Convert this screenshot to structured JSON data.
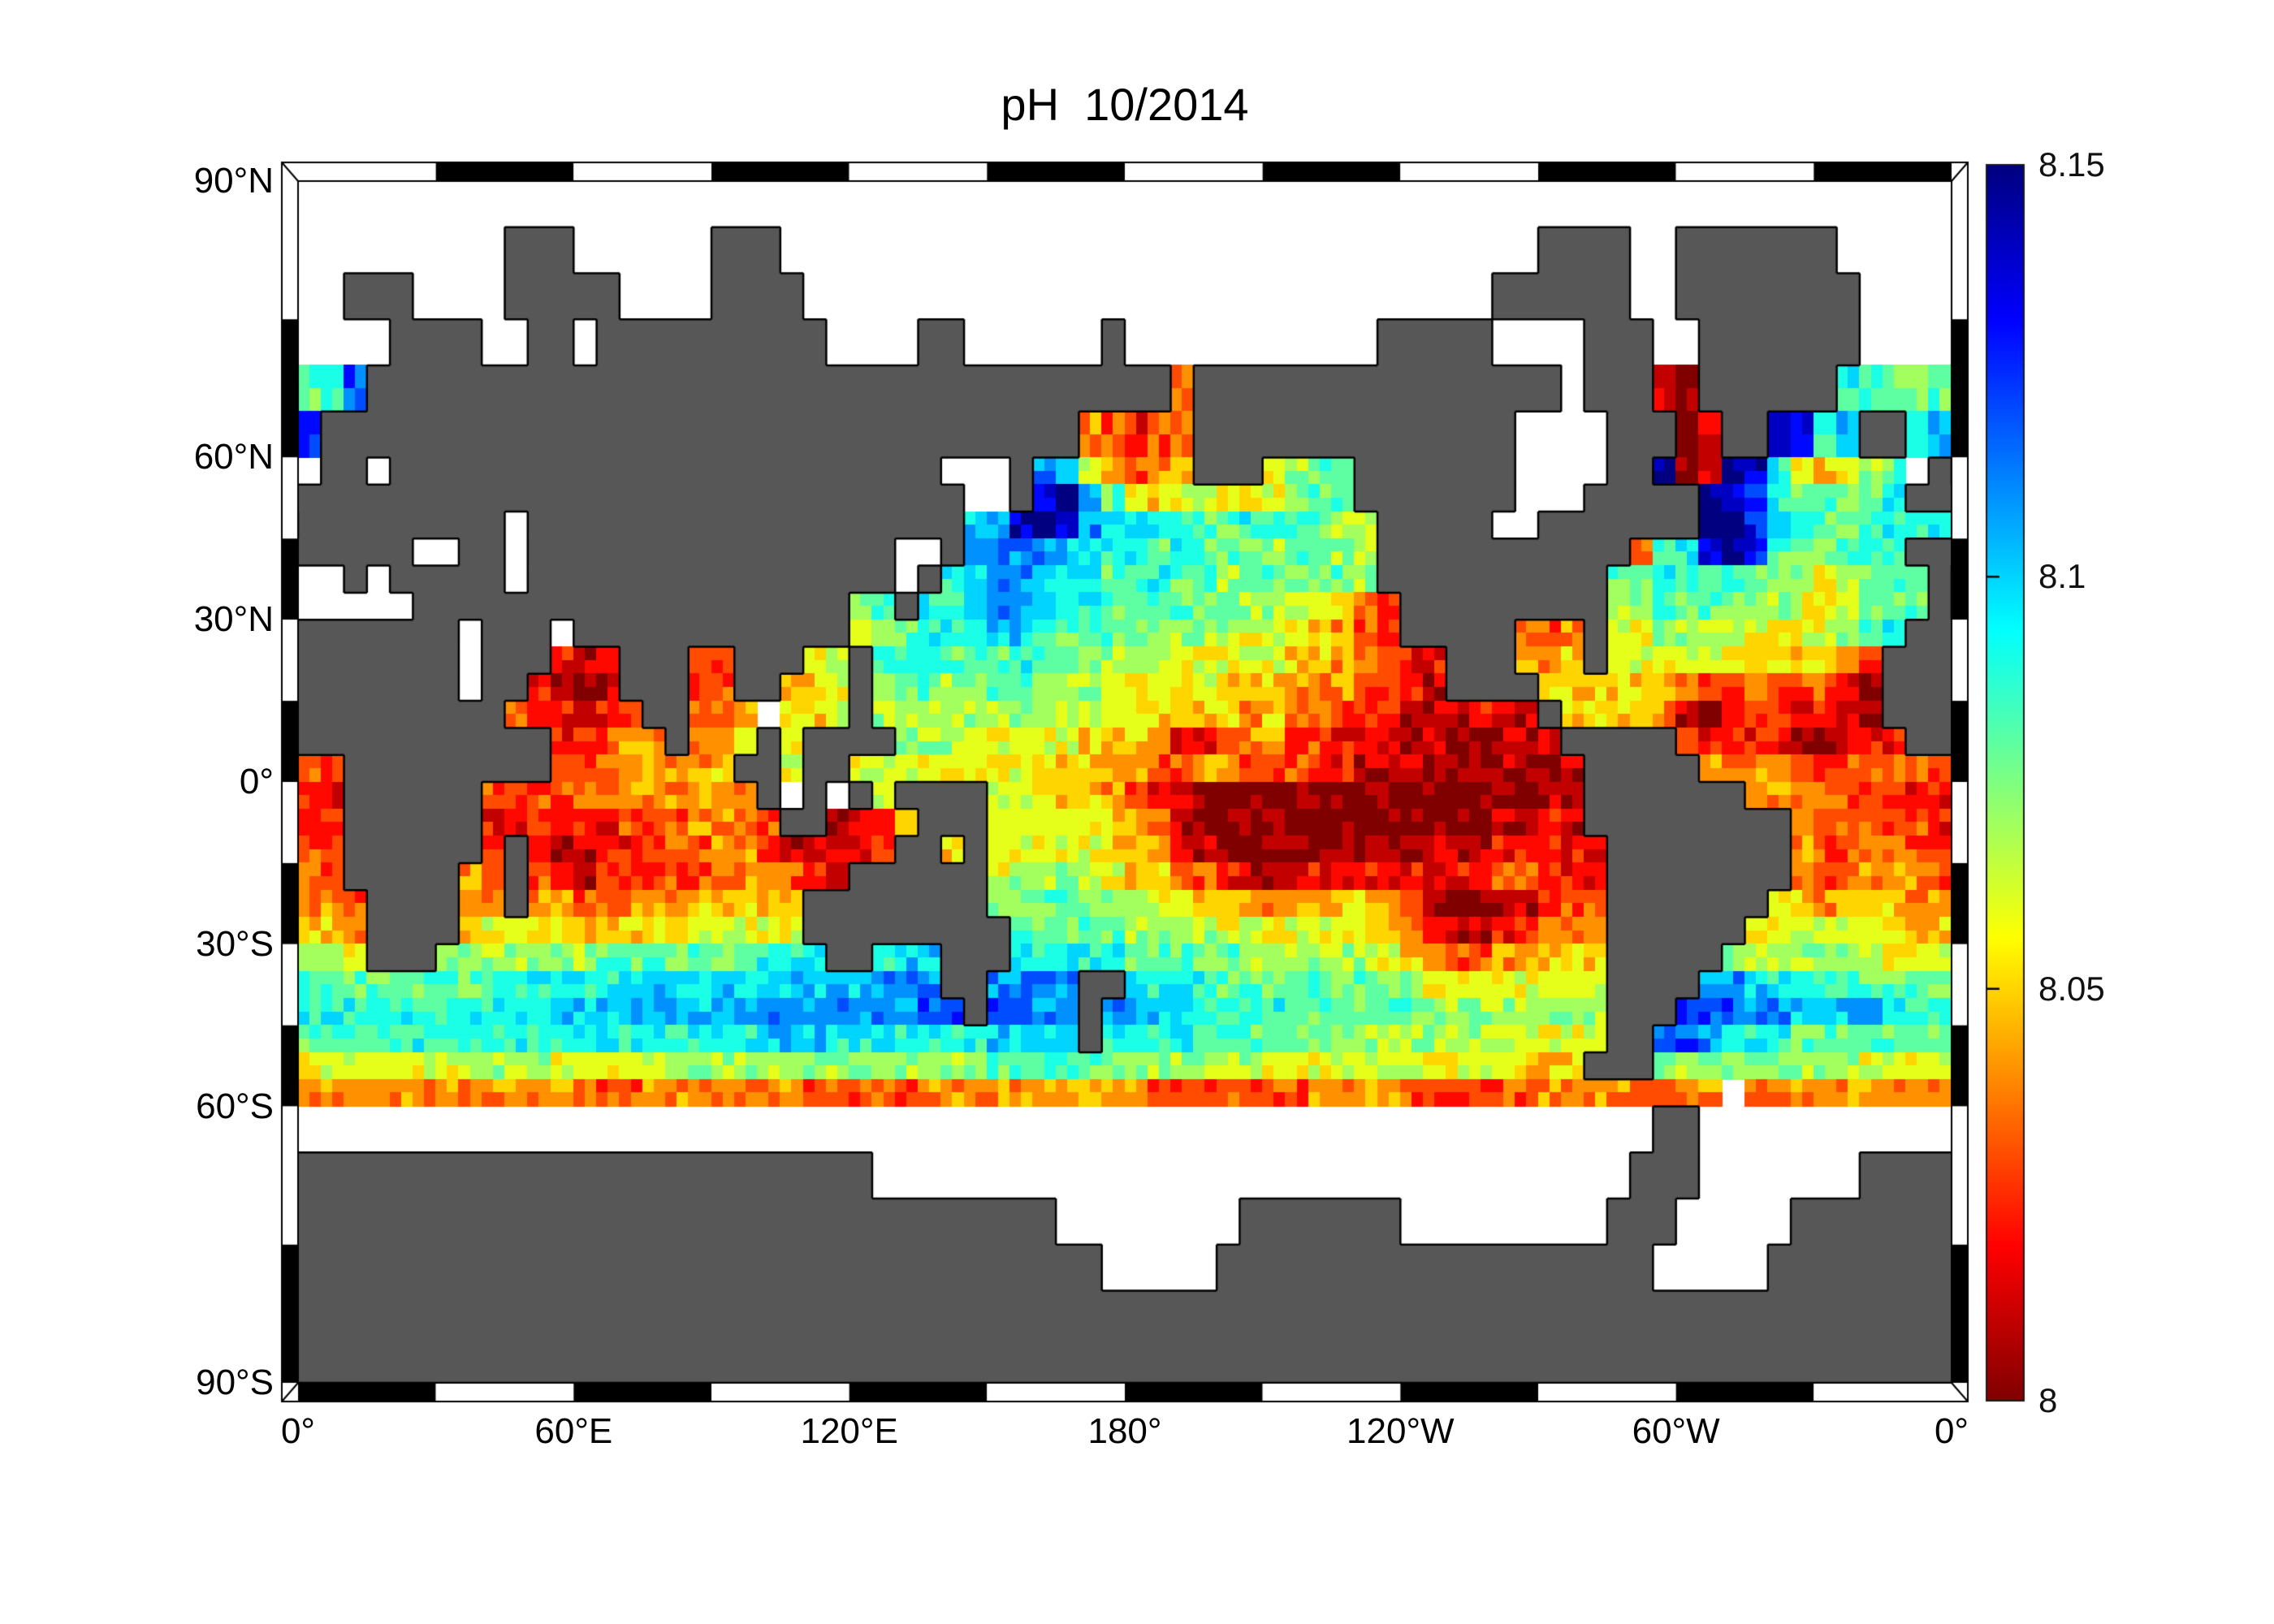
{
  "title": "pH  10/2014",
  "colors": {
    "background": "#ffffff",
    "land": "#575757",
    "coastline": "#000000",
    "frame": "#000000",
    "text": "#000000",
    "colorbar_top": "#000080",
    "colorbar_bottom": "#800000"
  },
  "axis": {
    "yticks": [
      {
        "lat": 90,
        "label": "90°N"
      },
      {
        "lat": 60,
        "label": "60°N"
      },
      {
        "lat": 30,
        "label": "30°N"
      },
      {
        "lat": 0,
        "label": "0°"
      },
      {
        "lat": -30,
        "label": "30°S"
      },
      {
        "lat": -60,
        "label": "60°S"
      },
      {
        "lat": -90,
        "label": "90°S"
      }
    ],
    "xticks": [
      {
        "lon": 0,
        "label": "0°"
      },
      {
        "lon": 60,
        "label": "60°E"
      },
      {
        "lon": 120,
        "label": "120°E"
      },
      {
        "lon": 180,
        "label": "180°"
      },
      {
        "lon": 240,
        "label": "120°W"
      },
      {
        "lon": 300,
        "label": "60°W"
      },
      {
        "lon": 360,
        "label": "0°"
      }
    ]
  },
  "colorbar": {
    "min": 8.0,
    "max": 8.15,
    "ticks": [
      {
        "value": 8.15,
        "label": "8.15"
      },
      {
        "value": 8.1,
        "label": "8.1"
      },
      {
        "value": 8.05,
        "label": "8.05"
      },
      {
        "value": 8.0,
        "label": "8"
      }
    ]
  },
  "chart_data": {
    "type": "heatmap",
    "title": "pH  10/2014",
    "variable": "sea surface pH",
    "colormap": "jet reversed (8.00 = dark red, 8.15 = dark blue)",
    "value_range": [
      8.0,
      8.15
    ],
    "lon_range": [
      0,
      360
    ],
    "lat_range": [
      -90,
      90
    ],
    "cell_deg": 5,
    "projection": "miller-like (poleward 30-degree bands stretched ~1.7x)",
    "encoding": "run-length tokens char:count; char '.'=no data (white), 'L'=land, hex 0..F => pH = 8.00 + 0.01*value",
    "grid_rows": [
      ".:72",
      ".:9 L:3 .:6 L:3 .:33 L:4 .:2 L:7 .:5",
      ".:2 L:3 .:4 L:5 .:4 L:4 .:30 L:6 .:2 L:8 .:4",
      ".:4 L:4 .:2 L:2 .:1 L:10 .:4 L:2 .:6 L:1 .:11 L:5 .:4 L:3 .:2 L:7 .:4",
      "8:1 9:1 C:1 L:35 3:1 L:16 .:1 L:3 1:1 0:1 L:6 9:2 8:1 7:1 8:1",
      "D:1 L:33 4:1 3:1 2:1 3:1 4:1 L:14 .:4 L:3 0:1 1:1 L:2 E:1 D:1 9:1 A:1 L:2 9:1 A:1",
      ".:1 L:2 .:1 L:24 .:3 L:1 B:1 A:1 6:1 4:1 3:1 4:1 5:1 L:3 6:1 7:1 8:2 L:7 .:4 L:2 F:1 0:1 1:1 F:1 E:1 9:1 5:2 6:1 7:1 8:1 .:1 L:1",
      "L:29 .:2 L:1 E:1 F:1 B:1 8:1 6:1 5:1 6:1 7:1 6:1 5:1 6:1 7:1 8:2 L:7 .:3 L:5 F:1 E:1 C:1 9:1 8:2 7:1 8:1 9:1 L:2",
      "L:9 .:1 L:19 A:1 B:1 E:1 F:1 E:1 B:1 A:2 9:2 8:2 9:2 8:2 7:1 6:1 L:5 .:2 L:7 F:2 D:1 A:1 9:1 8:2 9:4",
      "L:5 .:2 L:2 .:1 L:16 .:2 L:1 B:1 C:1 B:2 A:2 9:2 8:1 9:1 8:3 7:1 8:2 7:1 6:1 L:11 3:1 8:1 9:1 E:1 F:1 D:1 8:1 7:2 8:3 L:2",
      ".:2 L:1 .:1 L:5 .:1 L:16 .:1 L:1 9:1 A:1 B:2 A:1 9:2 8:2 9:1 8:2 7:1 8:2 7:2 8:1 7:1 L:10 8:2 9:1 8:2 9:1 8:1 7:2 6:1 7:1 8:3 L:1",
      ".:5 L:19 7:1 8:1 L:1 9:2 A:1 B:2 A:1 9:2 8:4 7:1 8:1 7:3 6:1 5:1 3:1 2:1 L:9 7:2 8:4 7:2 6:2 7:1 8:3 L:1",
      "L:7 .:1 L:3 .:1 L:12 6:1 8:2 9:3 A:2 9:1 8:4 7:4 6:3 5:1 4:1 3:1 2:1 L:5 4:1 3:1 4:1 L:1 6:2 7:4 6:4 7:1 8:1 9:1 L:2",
      "L:7 .:1 L:3 2:1 1:1 2:1 L:3 3:2 L:3 6:1 7:1 L:1 8:1 9:2 8:3 9:1 8:2 7:4 6:5 5:2 4:2 3:1 2:2 L:3 4:2 5:1 L:1 6:5 5:5 4:1 3:1 L:3",
      "L:7 .:1 L:2 2:1 1:1 0:1 1:1 L:3 2:1 3:1 L:2 5:2 6:1 L:1 7:1 8:2 7:2 8:2 7:3 6:3 5:1 6:1 5:3 4:3 3:2 2:1 1:1 L:4 5:6 4:1 3:2 4:1 3:3 2:1 1:1 L:3",
      "L:9 3:1 2:2 1:1 2:1 3:1 L:2 3:2 4:1 .:1 5:2 6:1 L:1 7:8 6:4 5:4 4:1 5:1 4:2 3:2 2:1 1:3 2:2 1:1 L:1 5:4 4:1 1:1 0:1 2:1 3:2 2:3 1:1 L:3",
      "L:11 2:1 3:2 4:2 L:1 4:2 5:1 L:1 6:1 L:4 7:3 6:5 5:3 4:1 2:2 3:1 4:2 3:2 2:2 1:3 0:2 1:2 2:1 L:5 3:1 2:4 1:1 0:1 1:1 2:2 L:2",
      "3:2 L:9 3:2 4:5 5:1 L:2 6:1 L:2 6:1 7:1 6:4 5:1 6:1 5:3 4:2 3:2 4:2 3:1 2:1 3:1 2:2 1:7 0:1 1:2 L:5 4:4 3:7",
      "2:2 L:6 3:6 4:6 L:1 .:1 L:1 .:1 L:1 6:1 L:4 6:3 5:2 4:1 3:1 2:1 1:1 0:15 1:2 L:7 4:3 3:4 2:2",
      "2:2 L:6 2:2 3:1 2:3 3:3 4:3 3:1 L:2 1:1 2:2 5:1 L:3 6:4 5:2 4:1 3:1 1:1 0:13 1:2 2:1 1:1 L:9 4:2 3:4 2:1",
      "3:2 L:6 3:1 L:1 2:1 1:2 2:2 3:3 4:2 2:1 1:2 2:2 3:1 L:2 5:1 L:1 6:5 5:2 4:1 2:1 1:2 0:4 1:7 2:4 1:1 L:8 4:1 3:2 4:2 3:2",
      "3:2 L:5 4:1 3:1 L:1 3:1 2:1 1:1 2:3 3:2 4:3 3:1 2:1 1:1 L:6 6:1 7:3 6:2 5:2 4:1 3:1 2:1 1:3 2:8 3:2 2:3 L:8 4:1 3:2 4:3 3:1",
      "4:2 3:1 L:4 4:2 L:1 4:2 3:2 4:3 5:5 L:8 7:2 8:2 7:3 6:2 5:2 4:4 5:2 4:1 3:1 1:1 0:2 1:2 2:1 3:2 L:7 5:2 4:1 5:3 4:2",
      "5:2 4:1 L:4 5:1 6:2 5:7 6:5 L:9 8:5 7:4 6:7 5:1 4:1 2:1 1:2 2:1 3:1 4:3 L:6 6:7 5:2",
      "7:2 6:1 L:3 7:7 8:7 9:3 L:2 9:1 A:2 L:3 9:5 8:5 7:6 6:1 5:1 4:1 3:2 4:2 5:3 L:5 7:7 6:3",
      "8:9 9:6 A:10 B:3 L:2 B:4 L:2 A:1 9:3 8:7 7:2 6:8 L:4 B:2 A:1 9:3 8:5",
      "9:11 A:8 B:8 C:2 L:1 C:2 B:2 L:1 B:2 A:2 9:4 8:7 7:7 L:3 D:1 C:2 B:2 A:4 9:3",
      "8:5 9:15 A:3 9:7 A:4 L:1 9:4 8:6 7:8 6:4 L:2 C:2 B:1 9:3 8:7",
      "6:7 7:4 6:5 7:14 8:7 7:5 6:11 5:3 L:3 7:9 6:4",
      "4:13 3:2 4:7 3:5 4:10 3:7 4:4 3:6 4:4 3:2 4:2 .:1 4:9",
      ".:59 L:2 .:11",
      "L:25 .:33 L:3 .:7 L:4",
      "L:33 .:8 L:7 .:9 L:3 .:5 L:7",
      "L:35 .:5 L:19 .:5 L:8",
      "L:72",
      "L:72"
    ],
    "notable_features": [
      "dark red (pH~8.00) band along equatorial Pacific 180E-280E",
      "dark red NW Arabian Sea and Bay of Bengal oranges",
      "dark navy (pH~8.15) patches: Labrador Sea, SE of Newfoundland, off Kuril Islands",
      "dark red cells in Davis Strait / Labrador coast",
      "blue band (pH~8.10-8.12) 35-45S around Australia, New Zealand, SW Atlantic",
      "orange band (pH~8.03-8.05) 50-60S circumpolar",
      "no data: Mediterranean, Black/Caspian Seas, Hudson Bay, Sea of Okhotsk, poleward of ~70N and ~60S"
    ],
    "legend_position": "right colorbar"
  }
}
